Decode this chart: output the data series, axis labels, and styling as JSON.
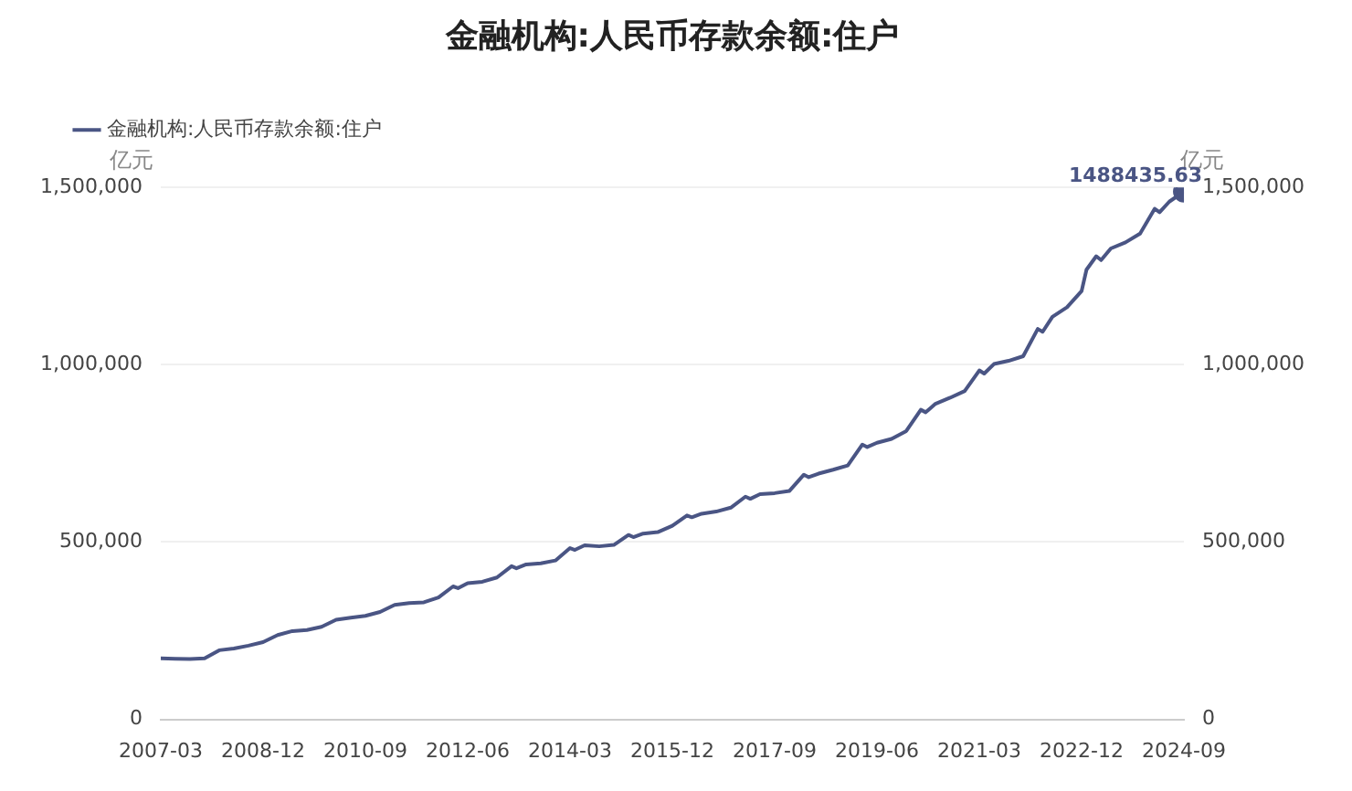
{
  "chart_data": {
    "type": "line",
    "title": "金融机构:人民币存款余额:住户",
    "ylabel": "亿元",
    "y2label": "亿元",
    "legend": "top left",
    "grid": "y",
    "marker": "none",
    "line_style": "solid",
    "xlim": [
      "2007-03",
      "2024-09"
    ],
    "xticks": [
      "2007-03",
      "2008-12",
      "2010-09",
      "2012-06",
      "2014-03",
      "2015-12",
      "2017-09",
      "2019-06",
      "2021-03",
      "2022-12",
      "2024-09"
    ],
    "ylim": [
      0,
      1500000
    ],
    "yticks": [
      0,
      {
        "value": 500000,
        "label": "500,000"
      },
      {
        "value": 1000000,
        "label": "1,000,000"
      },
      {
        "value": 1500000,
        "label": "1,500,000"
      }
    ],
    "y2lim": [
      0,
      1500000
    ],
    "y2ticks": [
      0,
      {
        "value": 500000,
        "label": "500,000"
      },
      {
        "value": 1000000,
        "label": "1,000,000"
      },
      {
        "value": 1500000,
        "label": "1,500,000"
      }
    ],
    "x": [
      "2007-03",
      "2007-06",
      "2007-09",
      "2007-12",
      "2008-03",
      "2008-06",
      "2008-09",
      "2008-12",
      "2009-03",
      "2009-06",
      "2009-09",
      "2009-12",
      "2010-03",
      "2010-06",
      "2010-09",
      "2010-12",
      "2011-03",
      "2011-06",
      "2011-09",
      "2011-12",
      "2012-03",
      "2012-04",
      "2012-06",
      "2012-09",
      "2012-12",
      "2013-03",
      "2013-04",
      "2013-06",
      "2013-09",
      "2013-12",
      "2014-03",
      "2014-04",
      "2014-06",
      "2014-09",
      "2014-12",
      "2015-03",
      "2015-04",
      "2015-06",
      "2015-09",
      "2015-12",
      "2016-03",
      "2016-04",
      "2016-06",
      "2016-09",
      "2016-12",
      "2017-03",
      "2017-04",
      "2017-06",
      "2017-09",
      "2017-12",
      "2018-03",
      "2018-04",
      "2018-06",
      "2018-09",
      "2018-12",
      "2019-03",
      "2019-04",
      "2019-06",
      "2019-09",
      "2019-12",
      "2020-03",
      "2020-04",
      "2020-06",
      "2020-09",
      "2020-12",
      "2021-03",
      "2021-04",
      "2021-06",
      "2021-09",
      "2021-12",
      "2022-03",
      "2022-04",
      "2022-06",
      "2022-09",
      "2022-12",
      "2023-01",
      "2023-03",
      "2023-04",
      "2023-06",
      "2023-09",
      "2023-12",
      "2024-03",
      "2024-04",
      "2024-06",
      "2024-09"
    ],
    "series": [
      {
        "name": "金融机构:人民币存款余额:住户",
        "color": "#4a5584",
        "values": [
          172000,
          171000,
          170000,
          172000,
          195000,
          200000,
          208000,
          218000,
          238000,
          249000,
          252000,
          261000,
          281000,
          287000,
          292000,
          303000,
          323000,
          328000,
          330000,
          344000,
          375000,
          370000,
          384000,
          388000,
          400000,
          432000,
          426000,
          437000,
          440000,
          448000,
          483000,
          478000,
          491000,
          488000,
          492000,
          520000,
          514000,
          524000,
          528000,
          546000,
          575000,
          570000,
          580000,
          586000,
          597000,
          628000,
          622000,
          635000,
          638000,
          644000,
          690000,
          683000,
          693000,
          704000,
          716000,
          775000,
          768000,
          780000,
          791000,
          813000,
          873000,
          866000,
          890000,
          907000,
          926000,
          984000,
          975000,
          1002000,
          1011000,
          1024000,
          1101000,
          1093000,
          1135000,
          1162000,
          1208000,
          1268000,
          1306000,
          1295000,
          1328000,
          1345000,
          1370000,
          1440000,
          1430000,
          1460000,
          1488435.63
        ],
        "value_labels": [
          null,
          null,
          null,
          null,
          null,
          null,
          null,
          null,
          null,
          null,
          null,
          null,
          null,
          null,
          null,
          null,
          null,
          null,
          null,
          null,
          null,
          null,
          null,
          null,
          null,
          null,
          null,
          null,
          null,
          null,
          null,
          null,
          null,
          null,
          null,
          null,
          null,
          null,
          null,
          null,
          null,
          null,
          null,
          null,
          null,
          null,
          null,
          null,
          null,
          null,
          null,
          null,
          null,
          null,
          null,
          null,
          null,
          null,
          null,
          null,
          null,
          null,
          null,
          null,
          null,
          null,
          null,
          null,
          null,
          null,
          null,
          null,
          null,
          null,
          null,
          null,
          null,
          null,
          null,
          null,
          null,
          null,
          null,
          null,
          "1488435.63"
        ]
      }
    ]
  }
}
